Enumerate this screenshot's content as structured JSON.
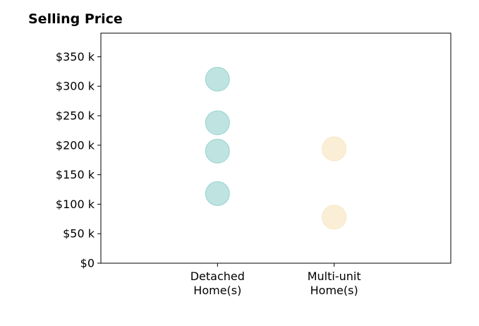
{
  "chart_data": {
    "type": "scatter",
    "title": "Selling Price",
    "xlabel": "",
    "ylabel": "",
    "categories": [
      [
        "Detached",
        "Home(s)"
      ],
      [
        "Multi-unit",
        "Home(s)"
      ]
    ],
    "yticks": [
      "$0",
      "$50 k",
      "$100 k",
      "$150 k",
      "$200 k",
      "$250 k",
      "$300 k",
      "$350 k"
    ],
    "ytick_values": [
      0,
      50,
      100,
      150,
      200,
      250,
      300,
      350
    ],
    "ylim": [
      0,
      390
    ],
    "xlim": [
      -1,
      2
    ],
    "grid": false,
    "series": [
      {
        "category_index": 0,
        "color": "#7ec8c2",
        "values": [
          312,
          238,
          190,
          118
        ]
      },
      {
        "category_index": 1,
        "color": "#f5dfae",
        "values": [
          194,
          78
        ]
      }
    ]
  }
}
